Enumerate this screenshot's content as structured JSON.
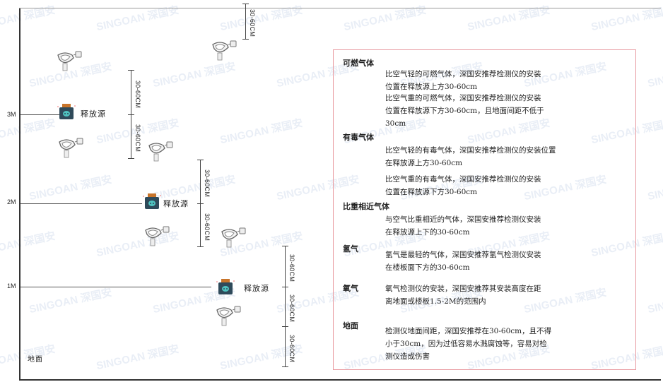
{
  "watermark": "SINGOAN 深国安",
  "levels": {
    "m3": "3M",
    "m2": "2M",
    "m1": "1M",
    "ground": "地面"
  },
  "source_label": "释放源",
  "dimension_label": "30-60CM",
  "panel": {
    "sections": [
      {
        "heading": "可燃气体",
        "paragraphs": [
          "比空气轻的可燃气体，深国安推荐检测仪的安装\n位置在释放源上方30-60cm",
          "比空气重的可燃气体，深国安推荐检测仪的安装\n位置在释放源下方30-60cm，且地面间距不低于\n30cm"
        ]
      },
      {
        "heading": "有毒气体",
        "paragraphs": [
          "比空气轻的有毒气体，深国安推荐检测仪的安装位置\n在释放源上方30-60cm",
          "比空气重的有毒气体，深国安推荐检测仪的安装\n位置在释放源下方30-60cm"
        ]
      },
      {
        "heading": "比重相近气体",
        "paragraphs": [
          "与空气比重相近的气体，深国安推荐检测仪安装\n在释放源上下的30-60cm"
        ]
      },
      {
        "heading": "氢气",
        "paragraphs": [
          "氢气是最轻的气体，深国安推荐氢气检测仪安装\n在楼板面下方的30-60cm"
        ]
      },
      {
        "heading": "氧气",
        "paragraphs": [
          "氧气检测仪的安装，深国安推荐其安装高度在距\n离地面或楼板1.5-2M的范围内"
        ]
      },
      {
        "heading": "地面",
        "paragraphs": [
          "检测仪地面间距，深国安推荐在30-60cm，且不得\n小于30cm，因为过低容易水溅腐蚀等，容易对检\n测仪造成伤害"
        ]
      }
    ]
  },
  "colors": {
    "panel_border": "#e89aa0",
    "source_top": "#c8742a",
    "source_body": "#2f4a5a",
    "source_face": "#4fc3c0"
  }
}
